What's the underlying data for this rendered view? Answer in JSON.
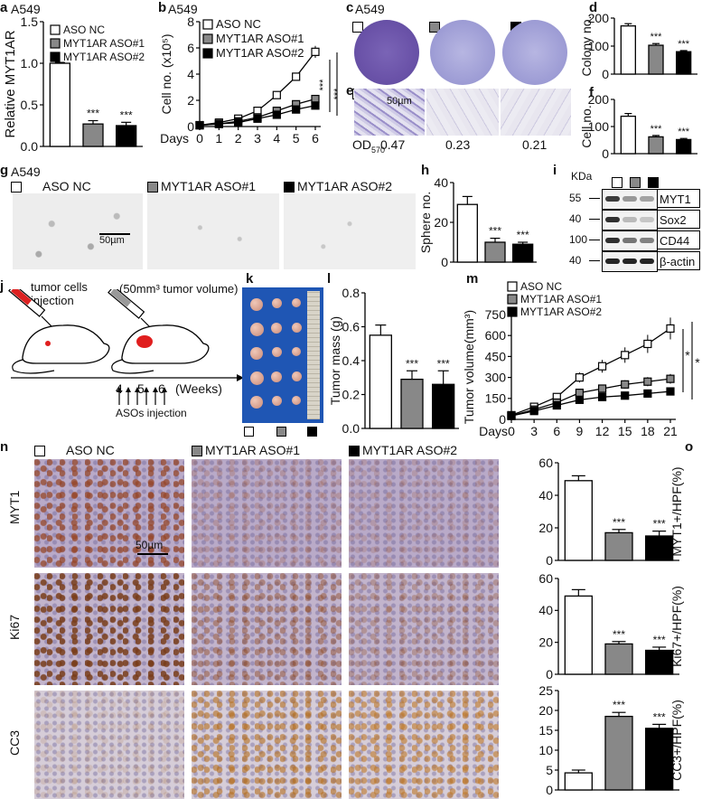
{
  "groups": {
    "nc": {
      "label": "ASO NC",
      "color": "#ffffff"
    },
    "aso1": {
      "label": "MYT1AR ASO#1",
      "color": "#888888"
    },
    "aso2": {
      "label": "MYT1AR ASO#2",
      "color": "#000000"
    }
  },
  "panel_labels": {
    "a": "a",
    "b": "b",
    "c": "c",
    "d": "d",
    "e": "e",
    "f": "f",
    "g": "g",
    "h": "h",
    "i": "i",
    "j": "j",
    "k": "k",
    "l": "l",
    "m": "m",
    "n": "n",
    "o": "o"
  },
  "cell_line": "A549",
  "sig": "***",
  "sig_single": "*",
  "panel_c": {
    "od_label": "OD",
    "od_sub": "570",
    "od_values": [
      "0.47",
      "0.23",
      "0.21"
    ],
    "scale_bar": "50µm"
  },
  "panel_g": {
    "scale_bar": "50µm"
  },
  "panel_i": {
    "kda": "KDa",
    "bands": [
      {
        "mw": "55",
        "name": "MYT1"
      },
      {
        "mw": "40",
        "name": "Sox2"
      },
      {
        "mw": "100",
        "name": "CD44"
      },
      {
        "mw": "40",
        "name": "β-actin"
      }
    ]
  },
  "panel_j": {
    "injection": "tumor cells injection",
    "volume": "(50mm³ tumor volume)",
    "weeks_ticks": [
      "4",
      "5",
      "6"
    ],
    "weeks_label": "(Weeks)",
    "aso_label": "ASOs injection"
  },
  "panel_n": {
    "rows": [
      "MYT1",
      "Ki67",
      "CC3"
    ],
    "scale_bar": "50µm"
  },
  "chart_data": [
    {
      "panel": "a",
      "type": "bar",
      "categories": [
        "ASO NC",
        "MYT1AR ASO#1",
        "MYT1AR ASO#2"
      ],
      "values": [
        1.0,
        0.27,
        0.25
      ],
      "errors": [
        0.01,
        0.04,
        0.04
      ],
      "ylabel": "Relative MYT1AR",
      "ylim": [
        0,
        1.5
      ],
      "yticks": [
        "0.0",
        "0.5",
        "1.0",
        "1.5"
      ]
    },
    {
      "panel": "b",
      "type": "line",
      "x": [
        0,
        1,
        2,
        3,
        4,
        5,
        6
      ],
      "xlabel": "Days",
      "ylabel": "Cell no. (x10⁵)",
      "ylim": [
        0,
        8
      ],
      "yticks": [
        "0",
        "2",
        "4",
        "6",
        "8"
      ],
      "series": [
        {
          "name": "ASO NC",
          "values": [
            0.1,
            0.3,
            0.6,
            1.2,
            2.4,
            3.8,
            5.7
          ]
        },
        {
          "name": "MYT1AR ASO#1",
          "values": [
            0.1,
            0.2,
            0.4,
            0.7,
            1.2,
            1.7,
            2.1
          ]
        },
        {
          "name": "MYT1AR ASO#2",
          "values": [
            0.1,
            0.2,
            0.3,
            0.6,
            0.9,
            1.3,
            1.6
          ]
        }
      ]
    },
    {
      "panel": "d",
      "type": "bar",
      "categories": [
        "ASO NC",
        "MYT1AR ASO#1",
        "MYT1AR ASO#2"
      ],
      "values": [
        172,
        103,
        80
      ],
      "errors": [
        8,
        6,
        4
      ],
      "ylabel": "Colony no.",
      "ylim": [
        0,
        200
      ],
      "yticks": [
        "0",
        "100",
        "200"
      ]
    },
    {
      "panel": "f",
      "type": "bar",
      "categories": [
        "ASO NC",
        "MYT1AR ASO#1",
        "MYT1AR ASO#2"
      ],
      "values": [
        138,
        62,
        52
      ],
      "errors": [
        10,
        5,
        4
      ],
      "ylabel": "Cell no.",
      "ylim": [
        0,
        200
      ],
      "yticks": [
        "0",
        "100",
        "200"
      ]
    },
    {
      "panel": "h",
      "type": "bar",
      "categories": [
        "ASO NC",
        "MYT1AR ASO#1",
        "MYT1AR ASO#2"
      ],
      "values": [
        29,
        10,
        9
      ],
      "errors": [
        4,
        2,
        1
      ],
      "ylabel": "Sphere no.",
      "ylim": [
        0,
        40
      ],
      "yticks": [
        "0",
        "20",
        "40"
      ]
    },
    {
      "panel": "l",
      "type": "bar",
      "categories": [
        "ASO NC",
        "MYT1AR ASO#1",
        "MYT1AR ASO#2"
      ],
      "values": [
        0.55,
        0.29,
        0.26
      ],
      "errors": [
        0.06,
        0.05,
        0.08
      ],
      "ylabel": "Tumor mass (g)",
      "ylim": [
        0,
        0.8
      ],
      "yticks": [
        "0.0",
        "0.2",
        "0.4",
        "0.6",
        "0.8"
      ]
    },
    {
      "panel": "m",
      "type": "line",
      "x": [
        0,
        3,
        6,
        9,
        12,
        15,
        18,
        21
      ],
      "xlabel": "Days",
      "ylabel": "Tumor volume(mm³)",
      "ylim": [
        0,
        750
      ],
      "yticks": [
        "0",
        "150",
        "300",
        "450",
        "600",
        "750"
      ],
      "series": [
        {
          "name": "ASO NC",
          "values": [
            30,
            90,
            160,
            300,
            380,
            460,
            540,
            650
          ]
        },
        {
          "name": "MYT1AR ASO#1",
          "values": [
            25,
            70,
            120,
            190,
            220,
            250,
            270,
            290
          ]
        },
        {
          "name": "MYT1AR ASO#2",
          "values": [
            25,
            60,
            100,
            140,
            160,
            170,
            185,
            200
          ]
        }
      ]
    },
    {
      "panel": "o1",
      "type": "bar",
      "categories": [
        "ASO NC",
        "MYT1AR ASO#1",
        "MYT1AR ASO#2"
      ],
      "values": [
        49,
        17,
        15
      ],
      "errors": [
        3,
        2,
        3
      ],
      "ylabel": "MYT1+/HPF(%)",
      "ylim": [
        0,
        60
      ],
      "yticks": [
        "0",
        "20",
        "40",
        "60"
      ]
    },
    {
      "panel": "o2",
      "type": "bar",
      "categories": [
        "ASO NC",
        "MYT1AR ASO#1",
        "MYT1AR ASO#2"
      ],
      "values": [
        49,
        19,
        15
      ],
      "errors": [
        4,
        1.5,
        2
      ],
      "ylabel": "Ki67+/HPF(%)",
      "ylim": [
        0,
        60
      ],
      "yticks": [
        "0",
        "20",
        "40",
        "60"
      ]
    },
    {
      "panel": "o3",
      "type": "bar",
      "categories": [
        "ASO NC",
        "MYT1AR ASO#1",
        "MYT1AR ASO#2"
      ],
      "values": [
        4.3,
        18.5,
        15.5
      ],
      "errors": [
        0.7,
        1,
        1
      ],
      "ylabel": "CC3+/HPF(%)",
      "ylim": [
        0,
        25
      ],
      "yticks": [
        "0",
        "5",
        "10",
        "15",
        "20",
        "25"
      ]
    }
  ]
}
